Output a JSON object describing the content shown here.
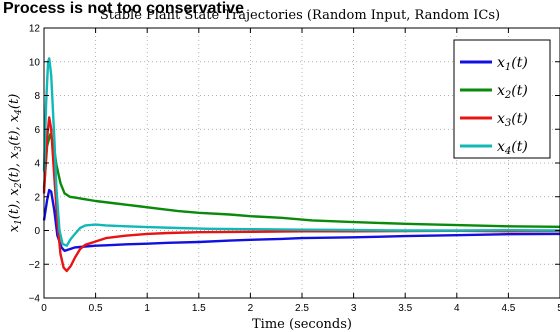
{
  "header_fragment": "Process is not too conservative",
  "chart_data": {
    "type": "line",
    "title": "Stable Plant State Trajectories (Random Input, Random ICs)",
    "xlabel": "Time (seconds)",
    "ylabel": "x1(t), x2(t), x3(t), x4(t)",
    "xlim": [
      0,
      5
    ],
    "ylim": [
      -4,
      12
    ],
    "xticks": [
      0,
      0.5,
      1,
      1.5,
      2,
      2.5,
      3,
      3.5,
      4,
      4.5,
      5
    ],
    "xtick_labels": [
      "0",
      "0.5",
      "1",
      "1.5",
      "2",
      "2.5",
      "3",
      "3.5",
      "4",
      "4.5",
      "5"
    ],
    "yticks": [
      -4,
      -2,
      0,
      2,
      4,
      6,
      8,
      10,
      12
    ],
    "ytick_labels": [
      "−4",
      "−2",
      "0",
      "2",
      "4",
      "6",
      "8",
      "10",
      "12"
    ],
    "grid": true,
    "legend_position": "top-right",
    "series": [
      {
        "name": "x1(t)",
        "color": "#1010e0",
        "points": [
          [
            0,
            0.6
          ],
          [
            0.03,
            1.8
          ],
          [
            0.05,
            2.4
          ],
          [
            0.07,
            2.3
          ],
          [
            0.1,
            1.2
          ],
          [
            0.13,
            -0.3
          ],
          [
            0.17,
            -1.0
          ],
          [
            0.2,
            -1.2
          ],
          [
            0.25,
            -1.1
          ],
          [
            0.3,
            -1.0
          ],
          [
            0.4,
            -0.95
          ],
          [
            0.5,
            -0.9
          ],
          [
            0.6,
            -0.88
          ],
          [
            0.8,
            -0.82
          ],
          [
            1.0,
            -0.78
          ],
          [
            1.2,
            -0.73
          ],
          [
            1.5,
            -0.68
          ],
          [
            1.8,
            -0.6
          ],
          [
            2.0,
            -0.55
          ],
          [
            2.3,
            -0.5
          ],
          [
            2.5,
            -0.45
          ],
          [
            3.0,
            -0.4
          ],
          [
            3.5,
            -0.33
          ],
          [
            4.0,
            -0.28
          ],
          [
            4.5,
            -0.22
          ],
          [
            5.0,
            -0.2
          ]
        ]
      },
      {
        "name": "x2(t)",
        "color": "#0a8a0a",
        "points": [
          [
            0,
            2.5
          ],
          [
            0.03,
            5.0
          ],
          [
            0.06,
            5.7
          ],
          [
            0.09,
            5.2
          ],
          [
            0.12,
            3.9
          ],
          [
            0.16,
            2.8
          ],
          [
            0.2,
            2.2
          ],
          [
            0.25,
            2.0
          ],
          [
            0.3,
            1.95
          ],
          [
            0.4,
            1.85
          ],
          [
            0.5,
            1.75
          ],
          [
            0.7,
            1.6
          ],
          [
            0.9,
            1.45
          ],
          [
            1.1,
            1.3
          ],
          [
            1.3,
            1.15
          ],
          [
            1.5,
            1.05
          ],
          [
            1.8,
            0.95
          ],
          [
            2.0,
            0.85
          ],
          [
            2.3,
            0.75
          ],
          [
            2.6,
            0.6
          ],
          [
            3.0,
            0.5
          ],
          [
            3.5,
            0.4
          ],
          [
            4.0,
            0.32
          ],
          [
            4.5,
            0.25
          ],
          [
            5.0,
            0.22
          ]
        ]
      },
      {
        "name": "x3(t)",
        "color": "#e81414",
        "points": [
          [
            0,
            2.2
          ],
          [
            0.03,
            5.5
          ],
          [
            0.05,
            6.7
          ],
          [
            0.07,
            6.0
          ],
          [
            0.1,
            3.2
          ],
          [
            0.13,
            0.5
          ],
          [
            0.16,
            -1.4
          ],
          [
            0.19,
            -2.2
          ],
          [
            0.22,
            -2.4
          ],
          [
            0.26,
            -2.1
          ],
          [
            0.3,
            -1.6
          ],
          [
            0.35,
            -1.1
          ],
          [
            0.4,
            -0.85
          ],
          [
            0.5,
            -0.65
          ],
          [
            0.6,
            -0.45
          ],
          [
            0.8,
            -0.3
          ],
          [
            1.0,
            -0.2
          ],
          [
            1.2,
            -0.15
          ],
          [
            1.5,
            -0.1
          ],
          [
            2.0,
            -0.08
          ],
          [
            2.5,
            -0.05
          ],
          [
            3.0,
            -0.05
          ],
          [
            3.5,
            -0.03
          ],
          [
            4.0,
            -0.02
          ],
          [
            4.5,
            -0.05
          ],
          [
            5.0,
            -0.03
          ]
        ]
      },
      {
        "name": "x4(t)",
        "color": "#10b8b8",
        "points": [
          [
            0,
            3.5
          ],
          [
            0.02,
            7.5
          ],
          [
            0.04,
            10.0
          ],
          [
            0.05,
            10.2
          ],
          [
            0.07,
            9.2
          ],
          [
            0.1,
            5.5
          ],
          [
            0.12,
            2.5
          ],
          [
            0.15,
            0.0
          ],
          [
            0.18,
            -0.8
          ],
          [
            0.22,
            -0.9
          ],
          [
            0.26,
            -0.5
          ],
          [
            0.3,
            -0.2
          ],
          [
            0.35,
            0.15
          ],
          [
            0.4,
            0.3
          ],
          [
            0.5,
            0.35
          ],
          [
            0.6,
            0.3
          ],
          [
            0.8,
            0.25
          ],
          [
            1.0,
            0.2
          ],
          [
            1.3,
            0.15
          ],
          [
            1.6,
            0.1
          ],
          [
            2.0,
            0.08
          ],
          [
            2.5,
            0.05
          ],
          [
            3.0,
            0.03
          ],
          [
            3.5,
            0.0
          ],
          [
            4.0,
            0.0
          ],
          [
            4.5,
            0.02
          ],
          [
            5.0,
            0.0
          ]
        ]
      }
    ]
  }
}
